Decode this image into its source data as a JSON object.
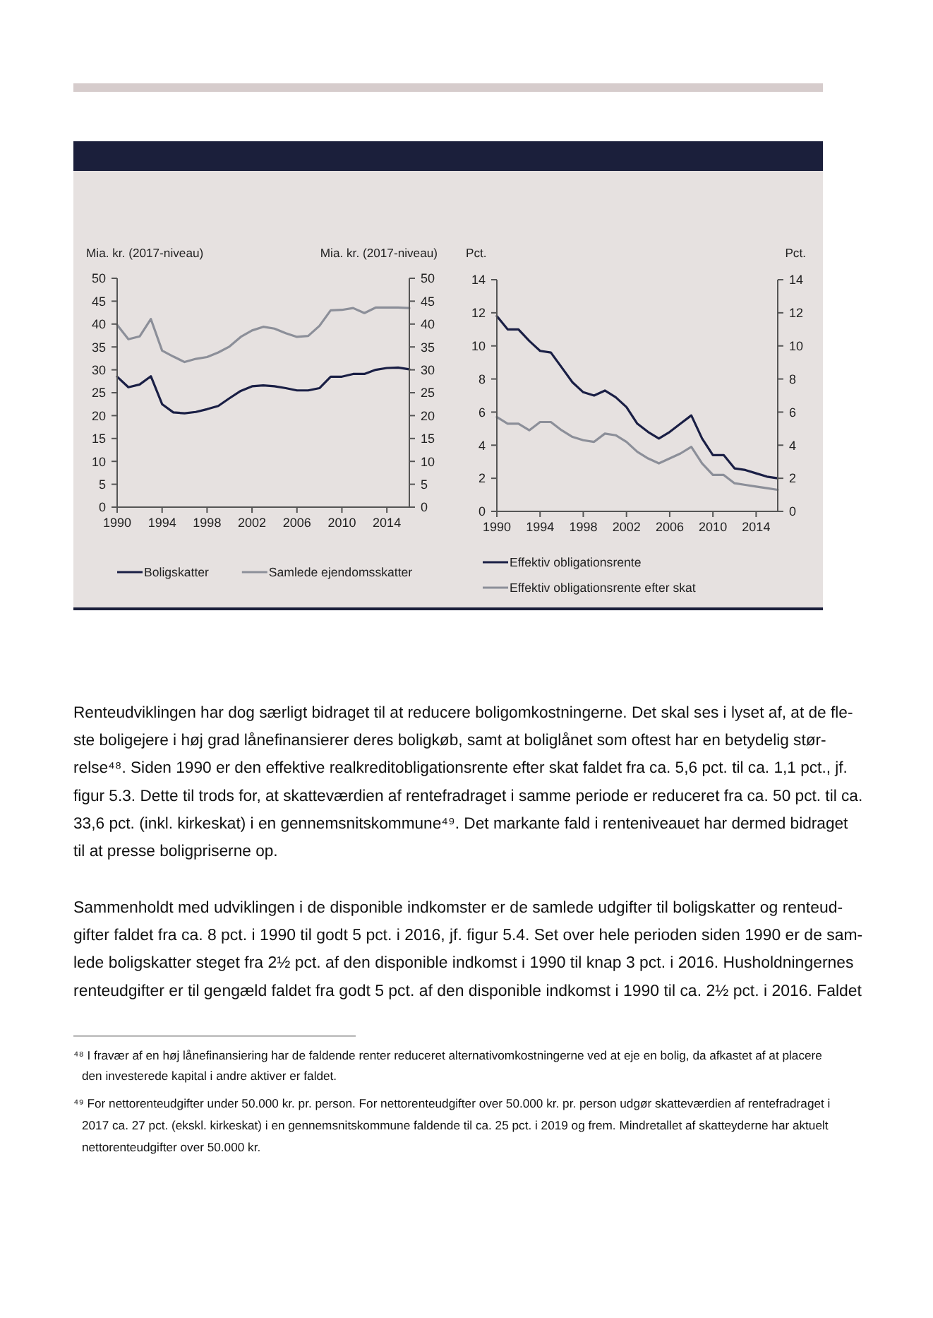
{
  "chart_data": [
    {
      "type": "line",
      "ylabel": "Mia. kr. (2017-niveau)",
      "y2label": "Mia. kr. (2017-niveau)",
      "x": [
        1990,
        1991,
        1992,
        1993,
        1994,
        1995,
        1996,
        1997,
        1998,
        1999,
        2000,
        2001,
        2002,
        2003,
        2004,
        2005,
        2006,
        2007,
        2008,
        2009,
        2010,
        2011,
        2012,
        2013,
        2014,
        2015,
        2016
      ],
      "xlim": [
        1990,
        2016
      ],
      "xticks": [
        1990,
        1994,
        1998,
        2002,
        2006,
        2010,
        2014
      ],
      "ylim": [
        0,
        50
      ],
      "yticks": [
        0,
        5,
        10,
        15,
        20,
        25,
        30,
        35,
        40,
        45,
        50
      ],
      "y2lim": [
        0,
        50
      ],
      "y2ticks": [
        0,
        5,
        10,
        15,
        20,
        25,
        30,
        35,
        40,
        45,
        50
      ],
      "legend": "bottom",
      "series": [
        {
          "name": "Boligskatter",
          "color": "#1a1f45",
          "values": [
            28.5,
            26.2,
            26.8,
            28.6,
            22.5,
            20.7,
            20.5,
            20.8,
            21.4,
            22.1,
            23.8,
            25.4,
            26.4,
            26.6,
            26.4,
            26.0,
            25.5,
            25.5,
            26.0,
            28.5,
            28.5,
            29.1,
            29.1,
            30.0,
            30.4,
            30.5,
            30.1
          ]
        },
        {
          "name": "Samlede ejendomsskatter",
          "color": "#8c8f99",
          "values": [
            39.8,
            36.7,
            37.3,
            41.1,
            34.2,
            32.9,
            31.7,
            32.4,
            32.8,
            33.8,
            35.1,
            37.2,
            38.6,
            39.4,
            39.0,
            38.0,
            37.2,
            37.4,
            39.6,
            43.0,
            43.1,
            43.5,
            42.4,
            43.6,
            43.6,
            43.6,
            43.5
          ]
        }
      ]
    },
    {
      "type": "line",
      "ylabel": "Pct.",
      "y2label": "Pct.",
      "x": [
        1990,
        1991,
        1992,
        1993,
        1994,
        1995,
        1996,
        1997,
        1998,
        1999,
        2000,
        2001,
        2002,
        2003,
        2004,
        2005,
        2006,
        2007,
        2008,
        2009,
        2010,
        2011,
        2012,
        2013,
        2014,
        2015,
        2016
      ],
      "xlim": [
        1990,
        2016
      ],
      "xticks": [
        1990,
        1994,
        1998,
        2002,
        2006,
        2010,
        2014
      ],
      "ylim": [
        0,
        14
      ],
      "yticks": [
        0,
        2,
        4,
        6,
        8,
        10,
        12,
        14
      ],
      "y2lim": [
        0,
        14
      ],
      "y2ticks": [
        0,
        2,
        4,
        6,
        8,
        10,
        12,
        14
      ],
      "legend": "bottom",
      "series": [
        {
          "name": "Effektiv obligationsrente",
          "color": "#1a1f45",
          "values": [
            11.8,
            11.0,
            11.0,
            10.3,
            9.7,
            9.6,
            8.7,
            7.8,
            7.2,
            7.0,
            7.3,
            6.9,
            6.3,
            5.3,
            4.8,
            4.4,
            4.8,
            5.3,
            5.8,
            4.4,
            3.4,
            3.4,
            2.6,
            2.5,
            2.3,
            2.1,
            2.0
          ]
        },
        {
          "name": "Effektiv obligationsrente efter skat",
          "color": "#8c8f99",
          "values": [
            5.7,
            5.3,
            5.3,
            4.9,
            5.4,
            5.4,
            4.9,
            4.5,
            4.3,
            4.2,
            4.7,
            4.6,
            4.2,
            3.6,
            3.2,
            2.9,
            3.2,
            3.5,
            3.9,
            2.9,
            2.2,
            2.2,
            1.7,
            1.6,
            1.5,
            1.4,
            1.3
          ]
        }
      ]
    },
    {
      "type": "other",
      "annotations": [
        "Renteudviklingen har dog særligt bidraget til at reducere boligomkostningerne. Det skal ses i lyset af, at de fle-",
        "ste boligejere i høj grad lånefinansierer deres boligkøb, samt at boliglånet som oftest har en betydelig stør-",
        "relse⁴⁸. Siden 1990 er den effektive realkreditobligationsrente efter skat faldet fra ca. 5,6 pct. til ca. 1,1 pct., jf.",
        "figur 5.3. Dette til trods for, at skatteværdien af rentefradraget i samme periode er reduceret fra ca. 50 pct. til ca.",
        "33,6 pct. (inkl. kirkeskat) i en gennemsnitskommune⁴⁹. Det markante fald i renteniveauet har dermed bidraget",
        "til at presse boligpriserne op."
      ]
    },
    {
      "type": "other",
      "annotations": [
        "Sammenholdt med udviklingen i de disponible indkomster er de samlede udgifter til boligskatter og renteud-",
        "gifter faldet fra ca. 8 pct. i 1990 til godt 5 pct. i 2016, jf. figur 5.4. Set over hele perioden siden 1990 er de sam-",
        "lede boligskatter steget fra 2½ pct. af den disponible indkomst i 1990 til knap 3 pct. i 2016. Husholdningernes",
        "renteudgifter er til gengæld faldet fra godt 5 pct. af den disponible indkomst i 1990 til ca. 2½ pct. i 2016. Faldet"
      ]
    },
    {
      "type": "other",
      "annotations": [
        "⁴⁸ I fravær af en høj lånefinansiering har de faldende renter reduceret alternativomkostningerne ved at eje en bolig, da afkastet af at placere",
        "den investerede kapital i andre aktiver er faldet."
      ]
    },
    {
      "type": "other",
      "annotations": [
        "⁴⁹ For nettorenteudgifter under 50.000 kr. pr. person. For nettorenteudgifter over 50.000 kr. pr. person udgør skatteværdien af rentefradraget i",
        "2017 ca. 27 pct. (ekskl. kirkeskat) i en gennemsnitskommune faldende til ca. 25 pct. i 2019 og frem. Mindretallet af skatteyderne har aktuelt",
        "nettorenteudgifter over 50.000 kr."
      ]
    }
  ]
}
